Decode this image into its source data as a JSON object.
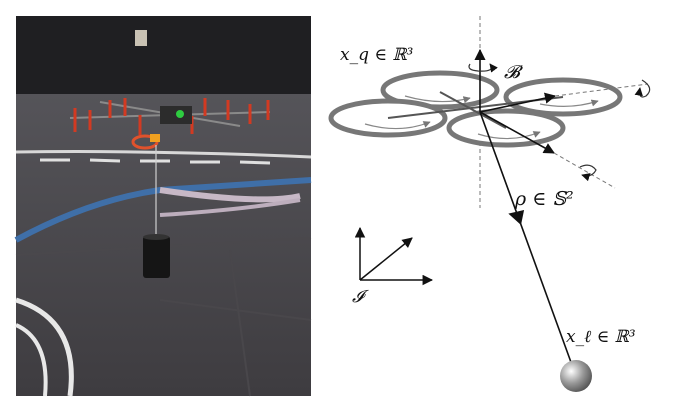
{
  "figure": {
    "photo": {
      "scene": "quadrotor suspending a cable payload in a motion-capture lab"
    },
    "diagram": {
      "labels": {
        "quad_position": "x_q ∈ ℝ³",
        "body_frame": "𝓑",
        "cable_direction": "ρ ∈ 𝕊²",
        "inertial_frame": "𝓘",
        "load_position": "x_ℓ ∈ ℝ³"
      }
    }
  }
}
